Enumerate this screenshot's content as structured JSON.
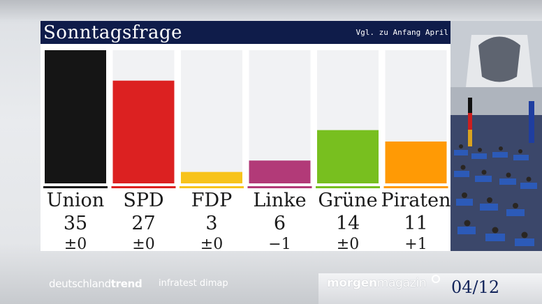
{
  "header": {
    "title": "Sonntagsfrage",
    "subtitle": "Vgl. zu Anfang April"
  },
  "chart_data": {
    "type": "bar",
    "categories": [
      "Union",
      "SPD",
      "FDP",
      "Linke",
      "Grüne",
      "Piraten"
    ],
    "values": [
      35,
      27,
      3,
      6,
      14,
      11
    ],
    "changes": [
      "±0",
      "±0",
      "±0",
      "−1",
      "±0",
      "+1"
    ],
    "colors": [
      "#151515",
      "#dc2121",
      "#f7c31c",
      "#b23a78",
      "#78bf1f",
      "#ff9a05"
    ],
    "ylim": [
      0,
      35
    ],
    "grid": false,
    "legend": "none"
  },
  "footer": {
    "brand_light": "deutschland",
    "brand_bold": "trend",
    "institute": "infratest dimap",
    "show_bold": "morgen",
    "show_light": "magazin",
    "date": "04/12"
  },
  "photo": {
    "icon": "bundestag-plenary-photo"
  }
}
